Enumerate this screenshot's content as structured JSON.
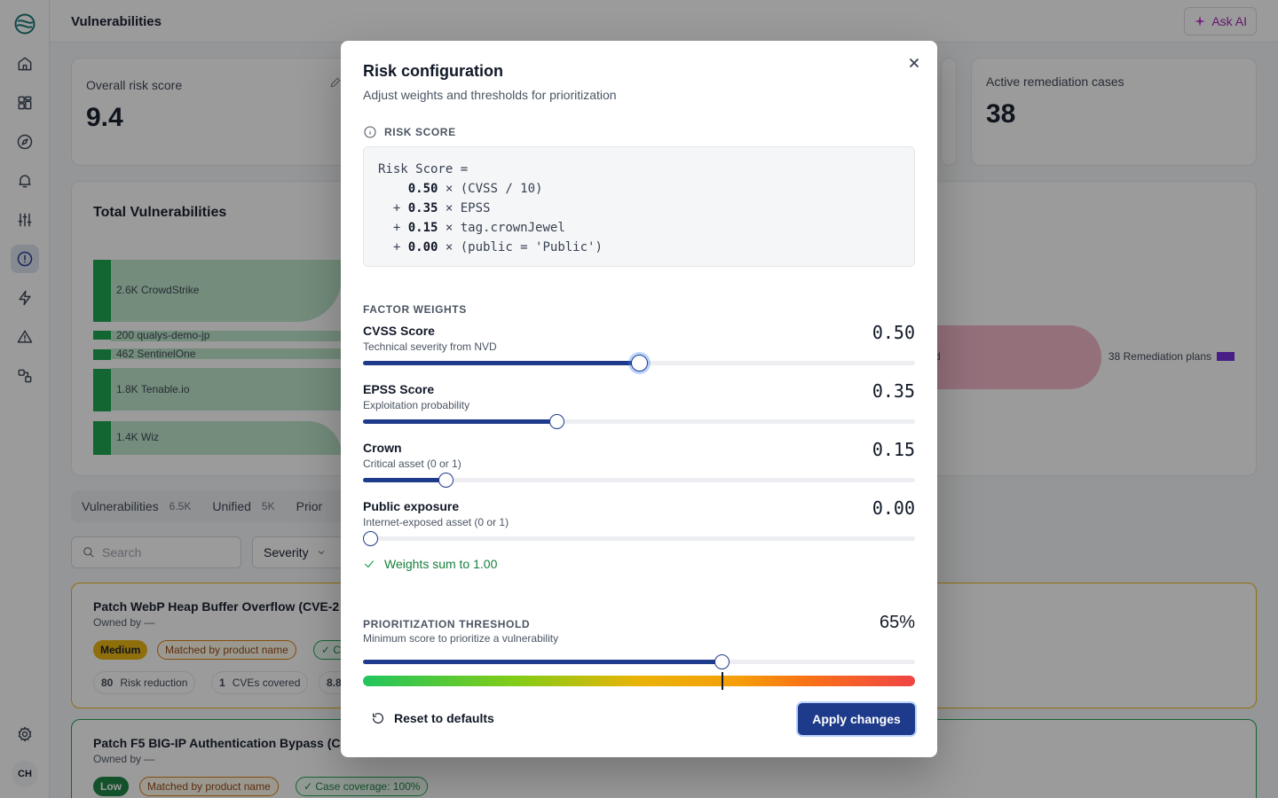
{
  "topbar": {
    "title": "Vulnerabilities",
    "ask_ai": "Ask AI"
  },
  "stats": {
    "risk_label": "Overall risk score",
    "risk_value": "9.4",
    "remediation_label": "Active remediation cases",
    "remediation_value": "38"
  },
  "total_vulns": {
    "title": "Total Vulnerabilities",
    "sources": [
      {
        "label": "2.6K CrowdStrike"
      },
      {
        "label": "200 qualys-demo-jp"
      },
      {
        "label": "462 SentinelOne"
      },
      {
        "label": "1.8K Tenable.io"
      },
      {
        "label": "1.4K Wiz"
      }
    ],
    "remediation_label": "38 Remediation plans",
    "mid_partial": "d"
  },
  "tabs": [
    {
      "label": "Vulnerabilities",
      "count": "6.5K"
    },
    {
      "label": "Unified",
      "count": "5K"
    },
    {
      "label": "Prior",
      "count": ""
    }
  ],
  "filters": {
    "search_placeholder": "Search",
    "severity": "Severity"
  },
  "plans": [
    {
      "title": "Patch WebP Heap Buffer Overflow (CVE-2",
      "owner": "Owned by —",
      "severity": "Medium",
      "match": "Matched by product name",
      "coverage_partial": "C",
      "risk_num": "80",
      "risk_label": "Risk reduction",
      "cves_num": "1",
      "cves_label": "CVEs covered",
      "extra_partial": "8.8"
    },
    {
      "title": "Patch F5 BIG-IP Authentication Bypass (C",
      "owner": "Owned by —",
      "severity": "Low",
      "match": "Matched by product name",
      "coverage": "Case coverage: 100%"
    }
  ],
  "user": {
    "initials": "CH"
  },
  "modal": {
    "title": "Risk configuration",
    "subtitle": "Adjust weights and thresholds for prioritization",
    "risk_score_heading": "RISK SCORE",
    "formula": {
      "head": "Risk Score =",
      "terms": [
        {
          "op": " ",
          "weight": "0.50",
          "expr": "× (CVSS / 10)"
        },
        {
          "op": "+",
          "weight": "0.35",
          "expr": "× EPSS"
        },
        {
          "op": "+",
          "weight": "0.15",
          "expr": "× tag.crownJewel"
        },
        {
          "op": "+",
          "weight": "0.00",
          "expr": "× (public = 'Public')"
        }
      ]
    },
    "factor_heading": "FACTOR WEIGHTS",
    "factors": [
      {
        "name": "CVSS Score",
        "desc": "Technical severity from NVD",
        "value": "0.50",
        "fraction": 0.5
      },
      {
        "name": "EPSS Score",
        "desc": "Exploitation probability",
        "value": "0.35",
        "fraction": 0.35
      },
      {
        "name": "Crown",
        "desc": "Critical asset (0 or 1)",
        "value": "0.15",
        "fraction": 0.15
      },
      {
        "name": "Public exposure",
        "desc": "Internet-exposed asset (0 or 1)",
        "value": "0.00",
        "fraction": 0.0
      }
    ],
    "sum_message": "Weights sum to 1.00",
    "threshold": {
      "label": "PRIORITIZATION THRESHOLD",
      "desc": "Minimum score to prioritize a vulnerability",
      "value": "65%",
      "fraction": 0.65
    },
    "reset_label": "Reset to defaults",
    "apply_label": "Apply changes"
  },
  "colors": {
    "accent": "#1e3a8a",
    "success": "#16a34a",
    "medium_badge": "#eab308",
    "low_badge": "#15803d",
    "remediation": "#6d28d9",
    "ask_ai": "#a21caf"
  }
}
